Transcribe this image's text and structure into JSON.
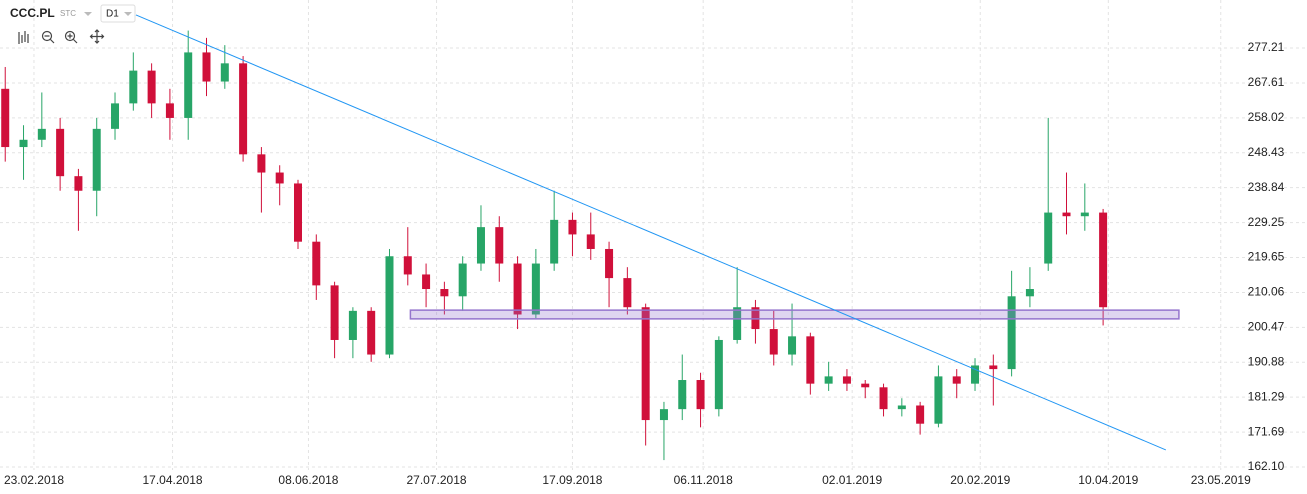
{
  "chart_data": {
    "type": "candlestick",
    "title": "CCC.PL",
    "exchange": "STC",
    "interval": "D1",
    "x": [
      "12.02.2018",
      "19.02.2018",
      "26.02.2018",
      "05.03.2018",
      "12.03.2018",
      "19.03.2018",
      "26.03.2018",
      "02.04.2018",
      "09.04.2018",
      "16.04.2018",
      "23.04.2018",
      "30.04.2018",
      "07.05.2018",
      "14.05.2018",
      "21.05.2018",
      "28.05.2018",
      "04.06.2018",
      "11.06.2018",
      "18.06.2018",
      "25.06.2018",
      "02.07.2018",
      "09.07.2018",
      "16.07.2018",
      "23.07.2018",
      "30.07.2018",
      "06.08.2018",
      "13.08.2018",
      "20.08.2018",
      "27.08.2018",
      "03.09.2018",
      "10.09.2018",
      "17.09.2018",
      "24.09.2018",
      "01.10.2018",
      "08.10.2018",
      "15.10.2018",
      "22.10.2018",
      "29.10.2018",
      "05.11.2018",
      "12.11.2018",
      "19.11.2018",
      "26.11.2018",
      "03.12.2018",
      "10.12.2018",
      "17.12.2018",
      "24.12.2018",
      "31.12.2018",
      "07.01.2019",
      "14.01.2019",
      "21.01.2019",
      "28.01.2019",
      "04.02.2019",
      "11.02.2019",
      "18.02.2019",
      "25.02.2019",
      "04.03.2019",
      "11.03.2019",
      "18.03.2019",
      "25.03.2019",
      "01.04.2019",
      "08.04.2019"
    ],
    "open": [
      266,
      250,
      252,
      255,
      242,
      238,
      255,
      262,
      271,
      262,
      258,
      276,
      268,
      273,
      248,
      243,
      240,
      224,
      212,
      197,
      205,
      193,
      220,
      215,
      211,
      209,
      218,
      228,
      218,
      204,
      218,
      230,
      226,
      222,
      214,
      206,
      175,
      178,
      186,
      178,
      197,
      206,
      200,
      193,
      198,
      185,
      187,
      185,
      184,
      178,
      179,
      174,
      187,
      185,
      190,
      189,
      209,
      218,
      232,
      231,
      232
    ],
    "high": [
      272,
      256,
      265,
      258,
      244,
      258,
      265,
      276,
      273,
      266,
      282,
      280,
      278,
      275,
      250,
      245,
      241,
      226,
      213,
      206,
      206,
      222,
      228,
      218,
      213,
      220,
      234,
      231,
      220,
      222,
      238,
      232,
      232,
      224,
      217,
      207,
      180,
      193,
      188,
      198,
      217,
      208,
      205,
      207,
      199,
      191,
      189,
      186,
      185,
      181,
      180,
      190,
      189,
      192,
      193,
      216,
      217,
      258,
      243,
      240,
      233
    ],
    "low": [
      246,
      241,
      250,
      238,
      227,
      231,
      252,
      260,
      258,
      252,
      252,
      264,
      266,
      246,
      232,
      234,
      222,
      208,
      192,
      192,
      191,
      192,
      212,
      206,
      204,
      205,
      216,
      213,
      200,
      203,
      216,
      220,
      219,
      206,
      204,
      168,
      164,
      175,
      173,
      176,
      196,
      196,
      190,
      190,
      182,
      183,
      183,
      181,
      176,
      176,
      171,
      173,
      181,
      183,
      179,
      187,
      206,
      216,
      226,
      227,
      201
    ],
    "close": [
      250,
      252,
      255,
      242,
      238,
      255,
      262,
      271,
      262,
      258,
      276,
      268,
      273,
      248,
      243,
      240,
      224,
      212,
      197,
      205,
      193,
      220,
      215,
      211,
      209,
      218,
      228,
      218,
      204,
      218,
      230,
      226,
      222,
      214,
      206,
      175,
      178,
      186,
      178,
      197,
      206,
      200,
      193,
      198,
      185,
      187,
      185,
      184,
      178,
      179,
      174,
      187,
      185,
      190,
      189,
      209,
      211,
      232,
      231,
      232,
      206
    ],
    "up_color": "#27a567",
    "down_color": "#d0103a",
    "xlim": [
      "10.02.2018",
      "25.06.2019"
    ],
    "xticks": [
      "23.02.2018",
      "17.04.2018",
      "08.06.2018",
      "27.07.2018",
      "17.09.2018",
      "06.11.2018",
      "02.01.2019",
      "20.02.2019",
      "10.04.2019",
      "23.05.2019"
    ],
    "ylim": [
      161.28,
      290.4
    ],
    "yticks": [
      277.21,
      267.61,
      258.02,
      248.43,
      238.84,
      229.25,
      219.65,
      210.06,
      200.47,
      190.88,
      181.29,
      171.69,
      {
        "value": 162.1,
        "label": "162.10"
      }
    ],
    "grid": true,
    "trendline": {
      "x": [
        "03.04.2018",
        "02.05.2019"
      ],
      "y": [
        286.3,
        166.8
      ],
      "color": "#2196f3"
    },
    "zone": {
      "x": [
        "17.07.2018",
        "07.05.2019"
      ],
      "y": [
        202.8,
        205.2
      ],
      "color": "#9575cd"
    }
  }
}
